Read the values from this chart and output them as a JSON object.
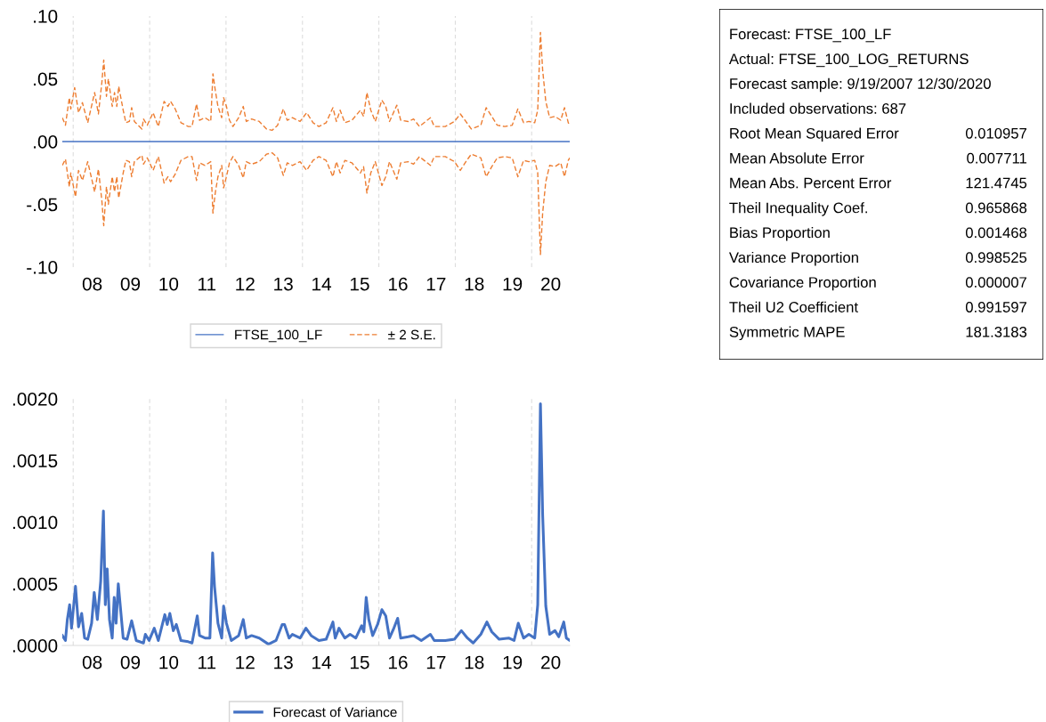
{
  "chart_data": [
    {
      "type": "line",
      "xlim": [
        "2007-09-19",
        "2020-12-30"
      ],
      "ylim": [
        -0.1,
        0.1
      ],
      "yticks": [
        {
          "value": -0.1,
          "label": "-.10"
        },
        {
          "value": -0.05,
          "label": "-.05"
        },
        {
          "value": 0,
          "label": ".00"
        },
        {
          "value": 0.05,
          "label": ".05"
        },
        {
          "value": 0.1,
          "label": ".10"
        }
      ],
      "xticks": [
        {
          "value": "2008-01-01",
          "label": null
        },
        {
          "value": "2010-01-01",
          "label": null
        },
        {
          "value": "2012-01-01",
          "label": null
        },
        {
          "value": "2014-01-01",
          "label": null
        },
        {
          "value": "2016-01-01",
          "label": null
        },
        {
          "value": "2018-01-01",
          "label": null
        },
        {
          "value": "2020-01-01",
          "label": null
        },
        {
          "value": "2008-07-01",
          "label": "08"
        },
        {
          "value": "2009-07-01",
          "label": "09"
        },
        {
          "value": "2010-07-01",
          "label": "10"
        },
        {
          "value": "2011-07-01",
          "label": "11"
        },
        {
          "value": "2012-07-01",
          "label": "12"
        },
        {
          "value": "2013-07-01",
          "label": "13"
        },
        {
          "value": "2014-07-01",
          "label": "14"
        },
        {
          "value": "2015-07-01",
          "label": "15"
        },
        {
          "value": "2016-07-01",
          "label": "16"
        },
        {
          "value": "2017-07-01",
          "label": "17"
        },
        {
          "value": "2018-07-01",
          "label": "18"
        },
        {
          "value": "2019-07-01",
          "label": "19"
        },
        {
          "value": "2020-07-01",
          "label": "20"
        }
      ],
      "grid": "x",
      "legend": "bottom",
      "series": [
        {
          "name": "FTSE_100_LF",
          "color": "#4472c4",
          "line_style": "solid",
          "x": [
            "2007-09-19",
            "2020-12-30"
          ],
          "values": [
            0,
            0
          ]
        },
        {
          "name": "± 2 S.E.",
          "color": "#ed7d31",
          "line_style": "dashed",
          "x": [
            "2007-09-19",
            "2007-10-19",
            "2007-11-25",
            "2007-12-09",
            "2008-01-15",
            "2008-02-21",
            "2008-03-29",
            "2008-05-19",
            "2008-07-24",
            "2008-08-29",
            "2008-10-01",
            "2008-10-19",
            "2008-11-14",
            "2008-12-02",
            "2009-01-08",
            "2009-01-30",
            "2009-02-21",
            "2009-03-11",
            "2009-04-23",
            "2009-05-19",
            "2009-06-21",
            "2009-07-13",
            "2009-08-08",
            "2009-10-19",
            "2009-11-03",
            "2009-12-09",
            "2010-02-03",
            "2010-03-25",
            "2010-05-19",
            "2010-06-25",
            "2010-07-20",
            "2010-09-02",
            "2010-10-27",
            "2011-01-05",
            "2011-02-10",
            "2011-03-25",
            "2011-04-23",
            "2011-06-14",
            "2011-08-08",
            "2011-08-29",
            "2011-09-20",
            "2011-10-16",
            "2011-11-21",
            "2011-12-09",
            "2012-01-05",
            "2012-02-03",
            "2012-03-07",
            "2012-05-01",
            "2012-06-14",
            "2012-07-13",
            "2012-09-02",
            "2012-11-14",
            "2013-01-23",
            "2013-03-18",
            "2013-05-08",
            "2013-07-02",
            "2013-08-08",
            "2013-09-27",
            "2013-12-09",
            "2014-02-10",
            "2014-04-12",
            "2014-06-07",
            "2014-08-15",
            "2014-10-19",
            "2014-11-21",
            "2014-12-27",
            "2015-02-10",
            "2015-04-19",
            "2015-07-09",
            "2015-08-08",
            "2015-09-09",
            "2015-10-16",
            "2015-11-28",
            "2016-01-30",
            "2016-03-07",
            "2016-04-12",
            "2016-06-21",
            "2016-07-28",
            "2016-10-08",
            "2016-11-28",
            "2017-01-23",
            "2017-05-08",
            "2017-06-14",
            "2017-09-27",
            "2017-12-24",
            "2018-02-18",
            "2018-04-12",
            "2018-06-03",
            "2018-09-02",
            "2018-10-23",
            "2018-12-16",
            "2019-02-06",
            "2019-04-19",
            "2019-06-29",
            "2019-08-22",
            "2019-10-16",
            "2019-12-05",
            "2020-01-30",
            "2020-02-28",
            "2020-03-25",
            "2020-04-15",
            "2020-05-15",
            "2020-06-21",
            "2020-08-11",
            "2020-10-05",
            "2020-11-10",
            "2020-12-16",
            "2020-12-30"
          ],
          "values": [
            0.019,
            0.013,
            0.035,
            0.026,
            0.043,
            0.023,
            0.031,
            0.015,
            0.039,
            0.022,
            0.047,
            0.065,
            0.036,
            0.05,
            0.028,
            0.039,
            0.028,
            0.044,
            0.025,
            0.015,
            0.016,
            0.027,
            0.016,
            0.01,
            0.018,
            0.013,
            0.023,
            0.012,
            0.032,
            0.028,
            0.032,
            0.026,
            0.015,
            0.012,
            0.012,
            0.03,
            0.017,
            0.019,
            0.016,
            0.054,
            0.041,
            0.028,
            0.019,
            0.035,
            0.028,
            0.017,
            0.012,
            0.019,
            0.028,
            0.016,
            0.018,
            0.016,
            0.01,
            0.009,
            0.013,
            0.026,
            0.017,
            0.019,
            0.016,
            0.023,
            0.015,
            0.012,
            0.015,
            0.027,
            0.016,
            0.025,
            0.015,
            0.017,
            0.025,
            0.02,
            0.039,
            0.025,
            0.016,
            0.033,
            0.028,
            0.016,
            0.029,
            0.017,
            0.016,
            0.018,
            0.012,
            0.019,
            0.012,
            0.012,
            0.016,
            0.022,
            0.016,
            0.01,
            0.013,
            0.027,
            0.02,
            0.013,
            0.012,
            0.013,
            0.026,
            0.015,
            0.016,
            0.015,
            0.025,
            0.087,
            0.057,
            0.032,
            0.019,
            0.02,
            0.017,
            0.027,
            0.015,
            0.013
          ]
        },
        {
          "color": "#ed7d31",
          "line_style": "dashed",
          "x": [
            "2007-09-19",
            "2007-10-19",
            "2007-11-25",
            "2007-12-09",
            "2008-01-23",
            "2008-02-21",
            "2008-03-29",
            "2008-05-19",
            "2008-07-24",
            "2008-08-29",
            "2008-10-01",
            "2008-10-19",
            "2008-11-14",
            "2008-12-02",
            "2009-01-08",
            "2009-01-30",
            "2009-02-21",
            "2009-03-11",
            "2009-04-23",
            "2009-05-19",
            "2009-06-21",
            "2009-07-13",
            "2009-08-08",
            "2009-10-19",
            "2009-11-03",
            "2009-12-09",
            "2010-02-03",
            "2010-03-25",
            "2010-05-19",
            "2010-06-25",
            "2010-07-20",
            "2010-09-02",
            "2010-10-27",
            "2011-01-05",
            "2011-02-10",
            "2011-03-25",
            "2011-04-23",
            "2011-06-14",
            "2011-08-08",
            "2011-08-29",
            "2011-09-20",
            "2011-10-16",
            "2011-11-21",
            "2011-12-09",
            "2012-01-05",
            "2012-02-03",
            "2012-03-07",
            "2012-05-01",
            "2012-06-14",
            "2012-07-13",
            "2012-09-02",
            "2012-11-14",
            "2013-01-23",
            "2013-03-18",
            "2013-05-08",
            "2013-07-02",
            "2013-08-08",
            "2013-09-27",
            "2013-12-09",
            "2014-02-10",
            "2014-04-12",
            "2014-06-07",
            "2014-08-15",
            "2014-10-19",
            "2014-11-21",
            "2014-12-27",
            "2015-02-10",
            "2015-04-19",
            "2015-07-09",
            "2015-08-08",
            "2015-09-09",
            "2015-10-16",
            "2015-11-28",
            "2016-01-30",
            "2016-03-07",
            "2016-04-12",
            "2016-06-21",
            "2016-07-28",
            "2016-10-08",
            "2016-11-28",
            "2017-01-23",
            "2017-05-08",
            "2017-06-14",
            "2017-09-27",
            "2017-12-24",
            "2018-02-18",
            "2018-04-12",
            "2018-06-03",
            "2018-09-02",
            "2018-10-23",
            "2018-12-16",
            "2019-02-06",
            "2019-04-19",
            "2019-06-29",
            "2019-08-22",
            "2019-10-16",
            "2019-12-05",
            "2020-01-30",
            "2020-02-28",
            "2020-03-25",
            "2020-04-15",
            "2020-05-15",
            "2020-06-21",
            "2020-08-11",
            "2020-10-05",
            "2020-11-10",
            "2020-12-16",
            "2020-12-30"
          ],
          "values": [
            -0.019,
            -0.014,
            -0.036,
            -0.025,
            -0.044,
            -0.023,
            -0.031,
            -0.016,
            -0.04,
            -0.022,
            -0.047,
            -0.067,
            -0.036,
            -0.05,
            -0.028,
            -0.04,
            -0.028,
            -0.045,
            -0.025,
            -0.015,
            -0.016,
            -0.028,
            -0.016,
            -0.011,
            -0.018,
            -0.013,
            -0.023,
            -0.012,
            -0.033,
            -0.028,
            -0.032,
            -0.026,
            -0.015,
            -0.012,
            -0.012,
            -0.031,
            -0.017,
            -0.019,
            -0.016,
            -0.057,
            -0.041,
            -0.028,
            -0.019,
            -0.037,
            -0.028,
            -0.017,
            -0.012,
            -0.019,
            -0.029,
            -0.016,
            -0.018,
            -0.016,
            -0.01,
            -0.009,
            -0.013,
            -0.027,
            -0.017,
            -0.019,
            -0.016,
            -0.023,
            -0.015,
            -0.012,
            -0.015,
            -0.028,
            -0.016,
            -0.025,
            -0.015,
            -0.017,
            -0.025,
            -0.02,
            -0.041,
            -0.025,
            -0.016,
            -0.035,
            -0.028,
            -0.016,
            -0.03,
            -0.017,
            -0.016,
            -0.018,
            -0.012,
            -0.019,
            -0.012,
            -0.012,
            -0.016,
            -0.023,
            -0.016,
            -0.01,
            -0.013,
            -0.028,
            -0.02,
            -0.013,
            -0.012,
            -0.013,
            -0.028,
            -0.015,
            -0.016,
            -0.015,
            -0.025,
            -0.09,
            -0.057,
            -0.032,
            -0.019,
            -0.02,
            -0.017,
            -0.028,
            -0.015,
            -0.013
          ]
        }
      ]
    },
    {
      "type": "line",
      "xlim": [
        "2007-09-19",
        "2020-12-30"
      ],
      "ylim": [
        0,
        0.002
      ],
      "yticks": [
        {
          "value": 0,
          "label": ".0000"
        },
        {
          "value": 0.0005,
          "label": ".0005"
        },
        {
          "value": 0.001,
          "label": ".0010"
        },
        {
          "value": 0.0015,
          "label": ".0015"
        },
        {
          "value": 0.002,
          "label": ".0020"
        }
      ],
      "xticks": [
        {
          "value": "2008-01-01",
          "label": null
        },
        {
          "value": "2010-01-01",
          "label": null
        },
        {
          "value": "2012-01-01",
          "label": null
        },
        {
          "value": "2014-01-01",
          "label": null
        },
        {
          "value": "2016-01-01",
          "label": null
        },
        {
          "value": "2018-01-01",
          "label": null
        },
        {
          "value": "2020-01-01",
          "label": null
        },
        {
          "value": "2008-07-01",
          "label": "08"
        },
        {
          "value": "2009-07-01",
          "label": "09"
        },
        {
          "value": "2010-07-01",
          "label": "10"
        },
        {
          "value": "2011-07-01",
          "label": "11"
        },
        {
          "value": "2012-07-01",
          "label": "12"
        },
        {
          "value": "2013-07-01",
          "label": "13"
        },
        {
          "value": "2014-07-01",
          "label": "14"
        },
        {
          "value": "2015-07-01",
          "label": "15"
        },
        {
          "value": "2016-07-01",
          "label": "16"
        },
        {
          "value": "2017-07-01",
          "label": "17"
        },
        {
          "value": "2018-07-01",
          "label": "18"
        },
        {
          "value": "2019-07-01",
          "label": "19"
        },
        {
          "value": "2020-07-01",
          "label": "20"
        }
      ],
      "grid": "x",
      "legend": "bottom",
      "series": [
        {
          "name": "Forecast of Variance",
          "color": "#4472c4",
          "line_style": "solid",
          "x": [
            "2007-09-19",
            "2007-10-19",
            "2007-11-06",
            "2007-11-28",
            "2007-12-16",
            "2008-01-23",
            "2008-02-21",
            "2008-03-22",
            "2008-04-19",
            "2008-05-19",
            "2008-06-25",
            "2008-07-20",
            "2008-08-19",
            "2008-09-20",
            "2008-10-16",
            "2008-11-03",
            "2008-11-21",
            "2008-12-13",
            "2009-01-08",
            "2009-01-27",
            "2009-02-14",
            "2009-03-07",
            "2009-04-23",
            "2009-05-30",
            "2009-07-13",
            "2009-08-26",
            "2009-11-03",
            "2009-11-21",
            "2009-12-27",
            "2010-02-14",
            "2010-03-25",
            "2010-05-26",
            "2010-06-18",
            "2010-07-13",
            "2010-08-15",
            "2010-09-13",
            "2010-10-27",
            "2011-01-05",
            "2011-02-10",
            "2011-04-01",
            "2011-04-23",
            "2011-06-14",
            "2011-07-31",
            "2011-08-26",
            "2011-09-13",
            "2011-10-16",
            "2011-11-21",
            "2011-12-09",
            "2012-01-05",
            "2012-02-21",
            "2012-05-01",
            "2012-06-14",
            "2012-07-13",
            "2012-09-02",
            "2012-11-14",
            "2013-02-10",
            "2013-04-23",
            "2013-06-21",
            "2013-07-13",
            "2013-08-26",
            "2013-09-27",
            "2013-12-09",
            "2014-02-03",
            "2014-03-25",
            "2014-06-07",
            "2014-08-15",
            "2014-10-19",
            "2014-11-10",
            "2014-12-16",
            "2015-02-10",
            "2015-04-01",
            "2015-05-26",
            "2015-07-20",
            "2015-08-11",
            "2015-09-02",
            "2015-09-27",
            "2015-11-03",
            "2015-12-20",
            "2016-01-30",
            "2016-03-07",
            "2016-04-12",
            "2016-05-19",
            "2016-06-29",
            "2016-07-28",
            "2016-10-08",
            "2016-11-28",
            "2017-02-10",
            "2017-05-08",
            "2017-06-14",
            "2017-09-27",
            "2017-12-24",
            "2018-02-28",
            "2018-04-27",
            "2018-06-21",
            "2018-09-02",
            "2018-10-30",
            "2018-12-16",
            "2019-02-25",
            "2019-05-26",
            "2019-07-17",
            "2019-08-26",
            "2019-10-16",
            "2019-12-05",
            "2020-01-30",
            "2020-02-28",
            "2020-03-25",
            "2020-04-15",
            "2020-05-15",
            "2020-06-21",
            "2020-08-11",
            "2020-09-16",
            "2020-11-03",
            "2020-11-28",
            "2020-12-30"
          ],
          "values": [
            8e-05,
            4e-05,
            0.00021,
            0.00033,
            0.00014,
            0.00048,
            0.00015,
            0.00026,
            6e-05,
            5e-05,
            0.00018,
            0.00043,
            0.00021,
            0.00052,
            0.00109,
            0.00033,
            0.00062,
            0.00021,
            6e-05,
            0.00039,
            0.00018,
            0.0005,
            6e-05,
            5e-05,
            0.0002,
            4e-05,
            2e-05,
            9e-05,
            4e-05,
            0.00014,
            4e-05,
            0.00025,
            0.00017,
            0.00026,
            0.00012,
            0.00017,
            4e-05,
            3e-05,
            2e-05,
            0.00024,
            8e-05,
            6e-05,
            6e-05,
            0.00075,
            0.00048,
            0.00018,
            6e-05,
            0.00032,
            0.00018,
            4e-05,
            8e-05,
            0.00021,
            6e-05,
            8e-05,
            6e-05,
            1e-05,
            4e-05,
            0.00017,
            0.00017,
            6e-05,
            9e-05,
            6e-05,
            0.00014,
            8e-05,
            4e-05,
            5e-05,
            0.00019,
            6e-05,
            0.00014,
            6e-05,
            9e-05,
            6e-05,
            0.00016,
            0.00011,
            0.00039,
            0.00021,
            8e-05,
            0.00017,
            0.00029,
            0.00024,
            6e-05,
            0.00013,
            0.00022,
            6e-05,
            7e-05,
            8e-05,
            4e-05,
            9e-05,
            4e-05,
            4e-05,
            5e-05,
            0.00012,
            6e-05,
            2e-05,
            9e-05,
            0.00019,
            0.00011,
            5e-05,
            6e-05,
            4e-05,
            0.00018,
            6e-05,
            9e-05,
            6e-05,
            0.00033,
            0.00196,
            0.00106,
            0.00032,
            9e-05,
            0.00012,
            7e-05,
            0.00019,
            6e-05,
            4e-05
          ]
        }
      ]
    },
    {
      "type": "other",
      "categories": [
        "Forecast: FTSE_100_LF",
        "Actual: FTSE_100_LOG_RETURNS",
        "Forecast sample: 9/19/2007 12/30/2020",
        "Included observations: 687",
        "Root Mean Squared Error",
        "Mean Absolute Error",
        "Mean Abs. Percent Error",
        "Theil Inequality Coef.",
        "Bias Proportion",
        "Variance Proportion",
        "Covariance Proportion",
        "Theil U2 Coefficient",
        "Symmetric MAPE"
      ],
      "value_labels": [
        null,
        null,
        null,
        null,
        "0.010957",
        "0.007711",
        "121.4745",
        "0.965868",
        "0.001468",
        "0.998525",
        "0.000007",
        "0.991597",
        "181.3183"
      ]
    }
  ]
}
